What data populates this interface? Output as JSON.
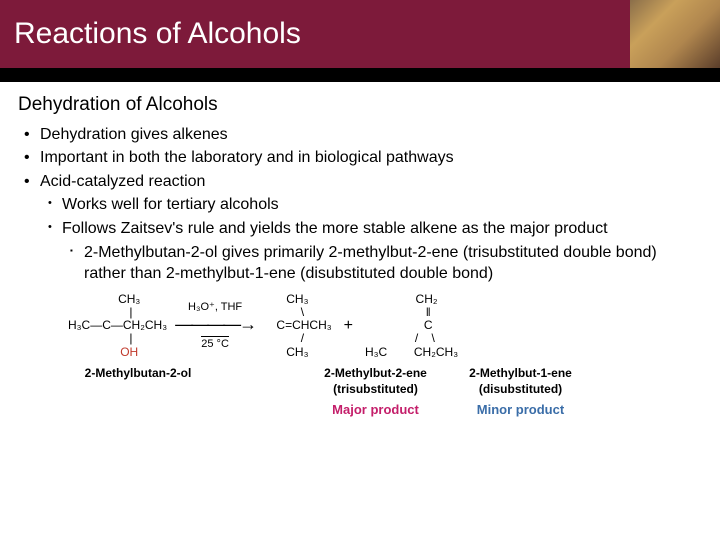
{
  "banner": {
    "title": "Reactions of Alcohols",
    "bg_color": "#7d1a3a",
    "title_color": "#ffffff"
  },
  "subtitle": "Dehydration of Alcohols",
  "bullets": {
    "b1_1": "Dehydration gives alkenes",
    "b1_2": "Important in both the laboratory and in biological pathways",
    "b1_3": "Acid-catalyzed reaction",
    "b2_1": "Works well for tertiary alcohols",
    "b2_2": "Follows Zaitsev's rule and yields the more stable alkene as the major product",
    "b3_1": "2-Methylbutan-2-ol gives primarily 2-methylbut-2-ene (trisubstituted double bond) rather than 2-methylbut-1-ene (disubstituted double bond)"
  },
  "diagram": {
    "reactant": {
      "l1": "       CH₃",
      "l2": "        |",
      "l3": "H₃C—C—CH₂CH₃",
      "l4": "        |",
      "l5": "       OH",
      "oh_color": "#c0392b"
    },
    "arrow": {
      "top": "H₃O⁺, THF",
      "bottom": "25 °C",
      "glyph": "————→"
    },
    "product1": {
      "l1": "CH₃",
      "l2": "   \\",
      "l3": "    C=CHCH₃",
      "l4": "   /",
      "l5": "CH₃"
    },
    "plus": "+",
    "product2": {
      "l1": "         CH₂",
      "l2": "          ‖",
      "l3": "          C",
      "l4": "        /    \\",
      "l5": "H₃C        CH₂CH₃"
    },
    "labels": {
      "reactant": "2-Methylbutan-2-ol",
      "product1_a": "2-Methylbut-2-ene",
      "product1_b": "(trisubstituted)",
      "product2_a": "2-Methylbut-1-ene",
      "product2_b": "(disubstituted)",
      "major": "Major product",
      "minor": "Minor product",
      "major_color": "#c41e6a",
      "minor_color": "#3a6da8"
    }
  }
}
